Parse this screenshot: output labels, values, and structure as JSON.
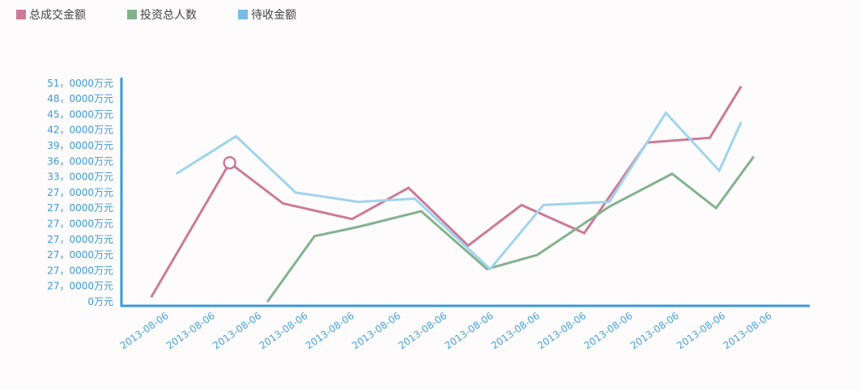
{
  "chart_data": {
    "type": "line",
    "legend_position": "top-left",
    "colors": {
      "axis": "#3a9ad9",
      "series": [
        "#cc7a98",
        "#83b28d",
        "#9fd4ee"
      ],
      "legend_swatches": [
        "#cc7a98",
        "#83b28d",
        "#7bbce6"
      ],
      "marker": "#c97b97"
    },
    "legend": [
      {
        "label": "总成交金额"
      },
      {
        "label": "投资总人数"
      },
      {
        "label": "待收金额"
      }
    ],
    "y_tick_labels": [
      "0万元",
      "27，0000万元",
      "27，0000万元",
      "27，0000万元",
      "27，0000万元",
      "27，0000万元",
      "27，0000万元",
      "27，0000万元",
      "33，0000万元",
      "36，0000万元",
      "39，0000万元",
      "42，0000万元",
      "45，0000万元",
      "48，0000万元",
      "51，0000万元"
    ],
    "categories": [
      "2013-08-06",
      "2013-08-06",
      "2013-08-06",
      "2013-08-06",
      "2013-08-06",
      "2013-08-06",
      "2013-08-06",
      "2013-08-06",
      "2013-08-06",
      "2013-08-06",
      "2013-08-06",
      "2013-08-06",
      "2013-08-06",
      "2013-08-06"
    ],
    "y_index_range": [
      0,
      14
    ],
    "series": [
      {
        "name": "总成交金额",
        "points": [
          [
            -0.3,
            0.3
          ],
          [
            0.95,
            8.9
          ],
          [
            1.8,
            6.3
          ],
          [
            2.9,
            5.3
          ],
          [
            3.8,
            7.3
          ],
          [
            4.75,
            3.6
          ],
          [
            5.6,
            6.2
          ],
          [
            6.6,
            4.4
          ],
          [
            7.6,
            10.2
          ],
          [
            8.6,
            10.5
          ],
          [
            9.1,
            13.8
          ]
        ],
        "marker_index": 1
      },
      {
        "name": "投资总人数",
        "points": [
          [
            1.55,
            0
          ],
          [
            2.3,
            4.2
          ],
          [
            3.0,
            4.8
          ],
          [
            4.0,
            5.8
          ],
          [
            5.05,
            2.1
          ],
          [
            5.85,
            3.0
          ],
          [
            7.0,
            6.1
          ],
          [
            8.0,
            8.2
          ],
          [
            8.7,
            6.0
          ],
          [
            9.3,
            9.3
          ]
        ]
      },
      {
        "name": "待收金额",
        "points": [
          [
            0.1,
            8.2
          ],
          [
            1.05,
            10.6
          ],
          [
            2.0,
            7.0
          ],
          [
            3.0,
            6.4
          ],
          [
            3.9,
            6.6
          ],
          [
            5.1,
            2.1
          ],
          [
            5.95,
            6.2
          ],
          [
            7.0,
            6.4
          ],
          [
            7.9,
            12.1
          ],
          [
            8.75,
            8.4
          ],
          [
            9.1,
            11.5
          ]
        ]
      }
    ]
  }
}
